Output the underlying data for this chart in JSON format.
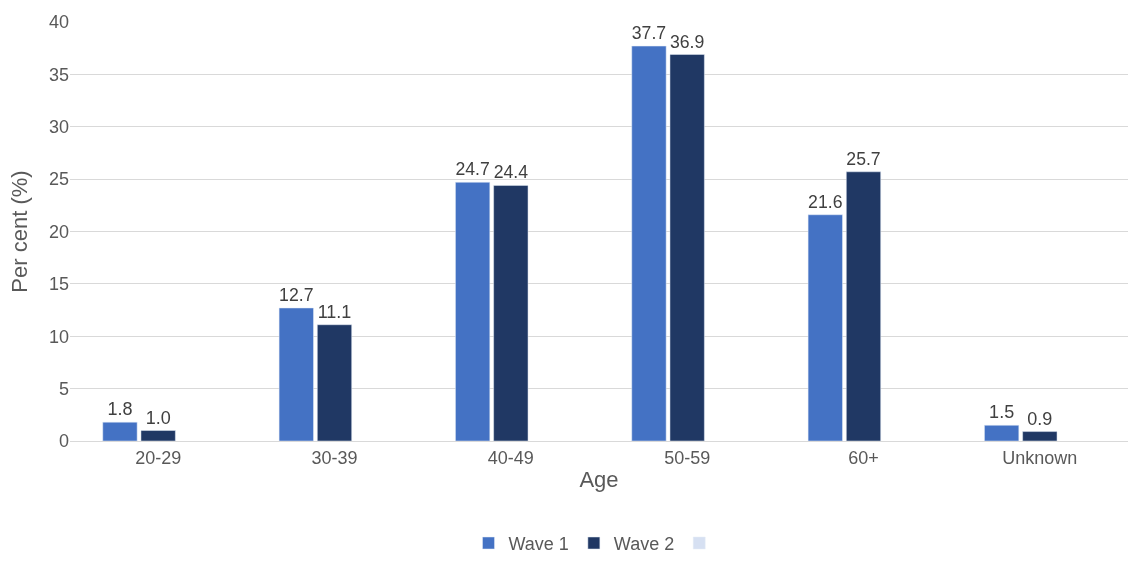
{
  "chart_data": {
    "type": "bar",
    "xlabel": "Age",
    "ylabel": "Per cent (%)",
    "categories": [
      "20-29",
      "30-39",
      "40-49",
      "50-59",
      "60+",
      "Unknown"
    ],
    "series": [
      {
        "name": "Wave 1",
        "color": "#4472c4",
        "values": [
          1.8,
          12.7,
          24.7,
          37.7,
          21.6,
          1.5
        ],
        "value_labels": [
          "1.8",
          "12.7",
          "24.7",
          "37.7",
          "21.6",
          "1.5"
        ]
      },
      {
        "name": "Wave 2",
        "color": "#203864",
        "values": [
          1.0,
          11.1,
          24.4,
          36.9,
          25.7,
          0.9
        ],
        "value_labels": [
          "1.0",
          "11.1",
          "24.4",
          "36.9",
          "25.7",
          "0.9"
        ]
      },
      {
        "color": "#d6e0f2",
        "values": [
          null,
          null,
          null,
          null,
          null,
          null
        ]
      }
    ],
    "ylim": [
      0,
      40
    ],
    "yticks": [
      0,
      5,
      10,
      15,
      20,
      25,
      30,
      35,
      40
    ],
    "grid": "y",
    "legend": "bottom"
  }
}
